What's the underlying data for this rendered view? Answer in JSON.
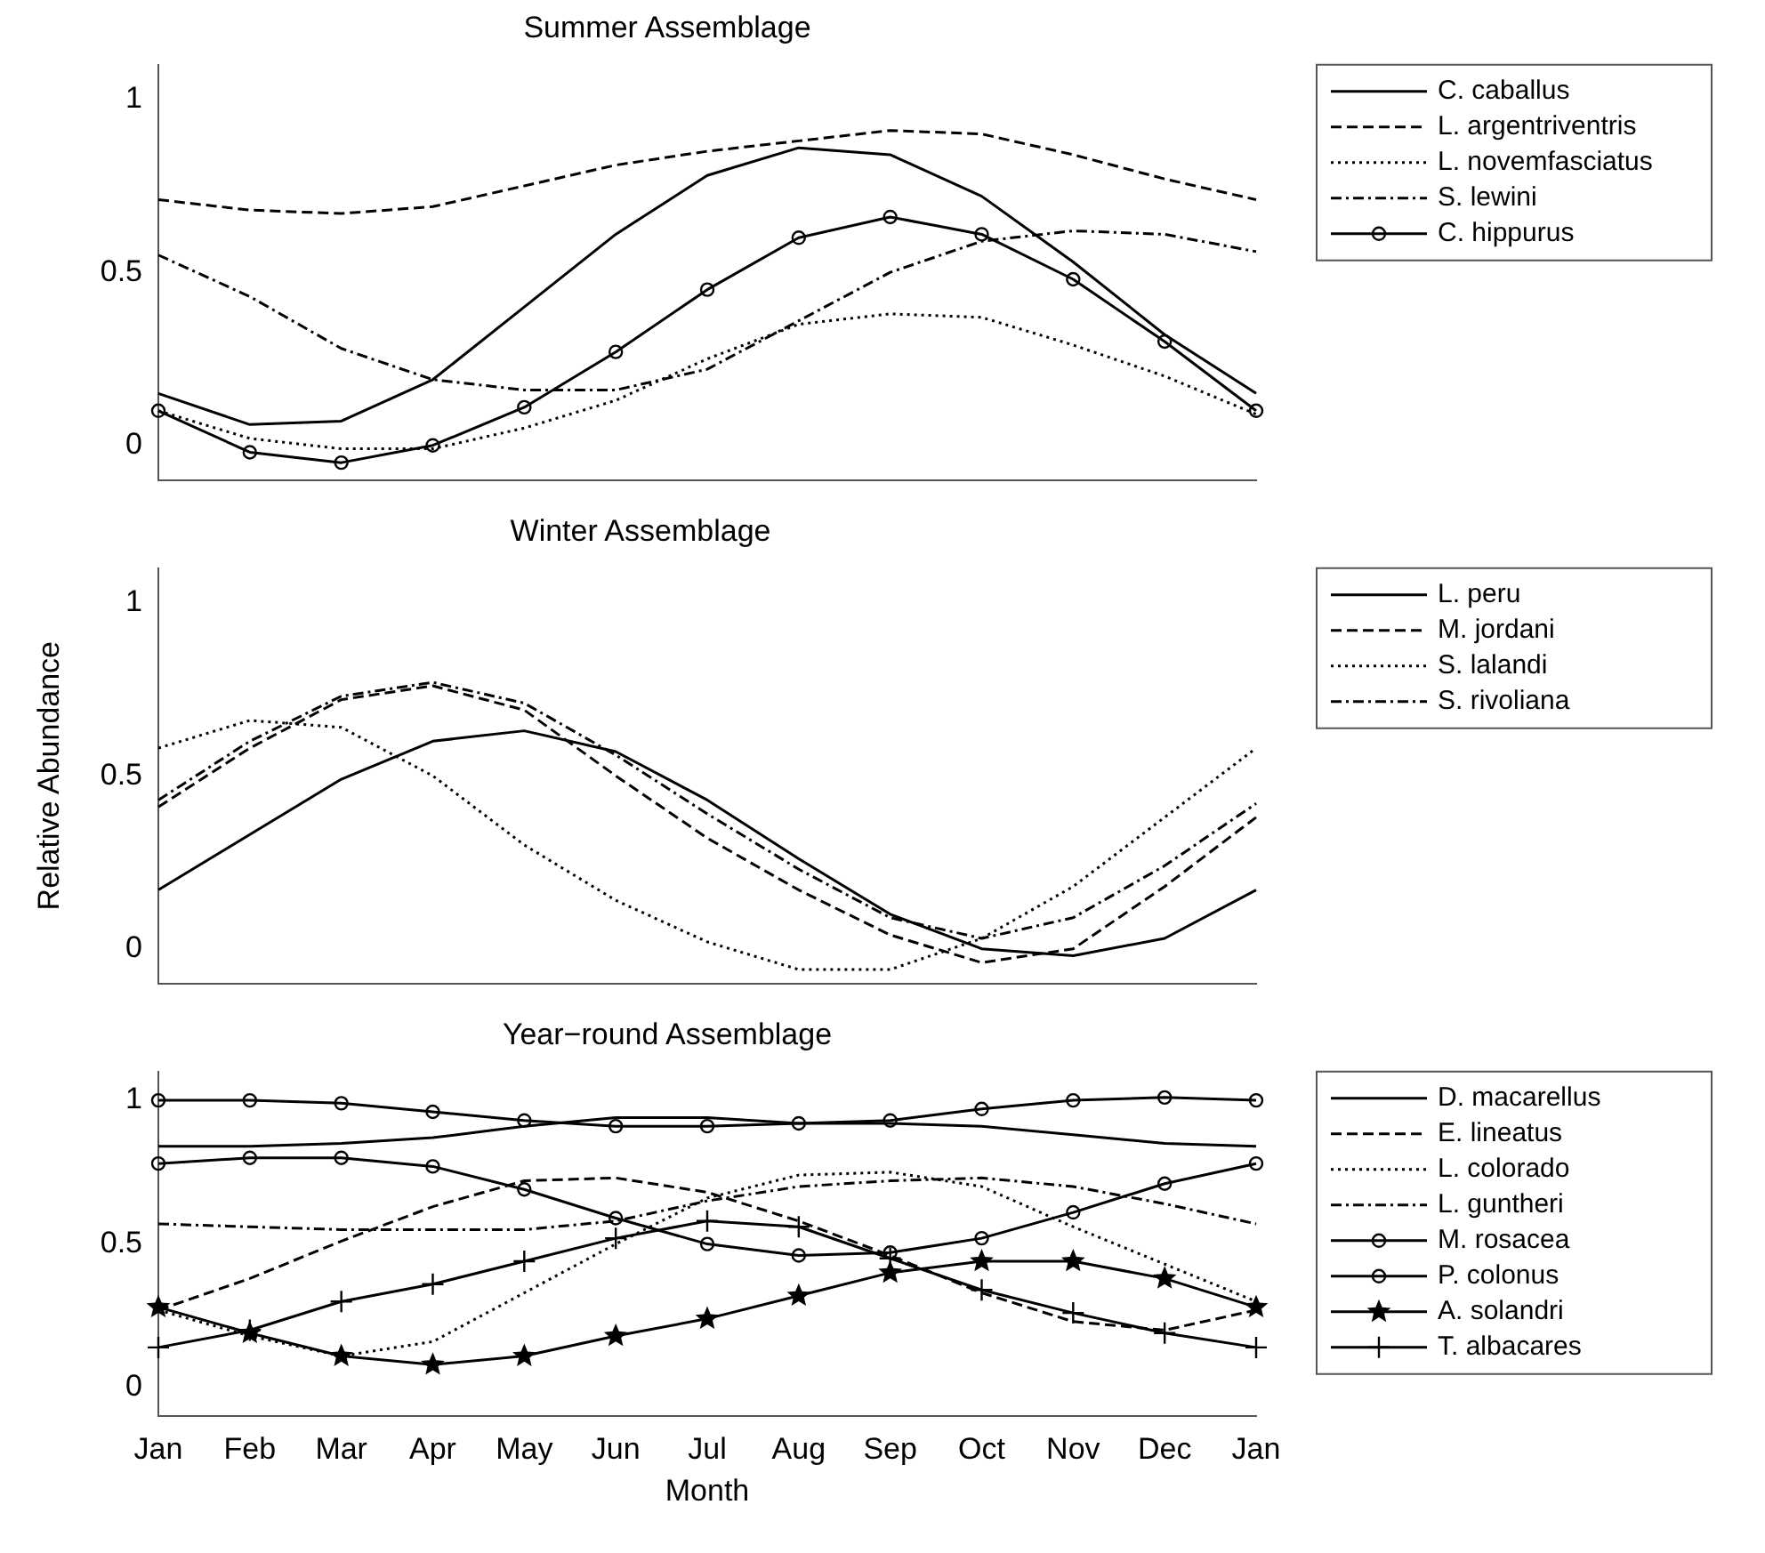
{
  "chart_data": [
    {
      "type": "line",
      "title": "Summer Assemblage",
      "categories": [
        null,
        null,
        null,
        null,
        null,
        null,
        null,
        null,
        null,
        null,
        null,
        null,
        null
      ],
      "ylim": [
        -0.1,
        1.1
      ],
      "yticks": [
        0,
        0.5,
        1
      ],
      "tick_labels": "y",
      "legend": "right",
      "grid": false,
      "series": [
        {
          "name": "C. caballus",
          "color": "#000000",
          "line_style": "solid",
          "values": [
            0.15,
            0.06,
            0.07,
            0.19,
            0.4,
            0.61,
            0.78,
            0.86,
            0.84,
            0.72,
            0.53,
            0.32,
            0.15
          ]
        },
        {
          "name": "L. argentriventris",
          "color": "#000000",
          "line_style": "dashed",
          "values": [
            0.71,
            0.68,
            0.67,
            0.69,
            0.75,
            0.81,
            0.85,
            0.88,
            0.91,
            0.9,
            0.84,
            0.77,
            0.71
          ]
        },
        {
          "name": "L. novemfasciatus",
          "color": "#000000",
          "line_style": "dotted",
          "values": [
            0.1,
            0.02,
            -0.01,
            -0.01,
            0.05,
            0.13,
            0.25,
            0.35,
            0.38,
            0.37,
            0.29,
            0.2,
            0.09
          ]
        },
        {
          "name": "S. lewini",
          "color": "#000000",
          "line_style": "dashdot",
          "values": [
            0.55,
            0.43,
            0.28,
            0.19,
            0.16,
            0.16,
            0.22,
            0.36,
            0.5,
            0.59,
            0.62,
            0.61,
            0.56
          ]
        },
        {
          "name": "C. hippurus",
          "color": "#000000",
          "line_style": "solid",
          "marker": "circle",
          "values": [
            0.1,
            -0.02,
            -0.05,
            0.0,
            0.11,
            0.27,
            0.45,
            0.6,
            0.66,
            0.61,
            0.48,
            0.3,
            0.1
          ]
        }
      ]
    },
    {
      "type": "line",
      "title": "Winter Assemblage",
      "ylabel": "Relative Abundance",
      "categories": [
        null,
        null,
        null,
        null,
        null,
        null,
        null,
        null,
        null,
        null,
        null,
        null,
        null
      ],
      "ylim": [
        -0.1,
        1.1
      ],
      "yticks": [
        0,
        0.5,
        1
      ],
      "tick_labels": "y",
      "legend": "right",
      "grid": false,
      "series": [
        {
          "name": "L. peru",
          "color": "#000000",
          "line_style": "solid",
          "values": [
            0.17,
            0.33,
            0.49,
            0.6,
            0.63,
            0.57,
            0.43,
            0.26,
            0.1,
            0.0,
            -0.02,
            0.03,
            0.17
          ]
        },
        {
          "name": "M. jordani",
          "color": "#000000",
          "line_style": "dashed",
          "values": [
            0.41,
            0.58,
            0.72,
            0.76,
            0.69,
            0.5,
            0.32,
            0.17,
            0.04,
            -0.04,
            0.0,
            0.18,
            0.38
          ]
        },
        {
          "name": "S. lalandi",
          "color": "#000000",
          "line_style": "dotted",
          "values": [
            0.58,
            0.66,
            0.64,
            0.5,
            0.3,
            0.14,
            0.02,
            -0.06,
            -0.06,
            0.03,
            0.18,
            0.38,
            0.58
          ]
        },
        {
          "name": "S. rivoliana",
          "color": "#000000",
          "line_style": "dashdot",
          "values": [
            0.43,
            0.6,
            0.73,
            0.77,
            0.71,
            0.56,
            0.39,
            0.23,
            0.09,
            0.03,
            0.09,
            0.24,
            0.42
          ]
        }
      ]
    },
    {
      "type": "line",
      "title": "Year−round Assemblage",
      "xlabel": "Month",
      "categories": [
        "Jan",
        "Feb",
        "Mar",
        "Apr",
        "May",
        "Jun",
        "Jul",
        "Aug",
        "Sep",
        "Oct",
        "Nov",
        "Dec",
        "Jan"
      ],
      "ylim": [
        -0.1,
        1.1
      ],
      "yticks": [
        0,
        0.5,
        1
      ],
      "legend": "right",
      "grid": false,
      "series": [
        {
          "name": "D. macarellus",
          "color": "#000000",
          "line_style": "solid",
          "values": [
            0.84,
            0.84,
            0.85,
            0.87,
            0.91,
            0.94,
            0.94,
            0.92,
            0.92,
            0.91,
            0.88,
            0.85,
            0.84
          ]
        },
        {
          "name": "E. lineatus",
          "color": "#000000",
          "line_style": "dashed",
          "values": [
            0.27,
            0.38,
            0.51,
            0.63,
            0.72,
            0.73,
            0.68,
            0.58,
            0.46,
            0.33,
            0.23,
            0.2,
            0.27
          ]
        },
        {
          "name": "L. colorado",
          "color": "#000000",
          "line_style": "dotted",
          "values": [
            0.27,
            0.18,
            0.11,
            0.16,
            0.33,
            0.5,
            0.66,
            0.74,
            0.75,
            0.7,
            0.56,
            0.43,
            0.3
          ]
        },
        {
          "name": "L. guntheri",
          "color": "#000000",
          "line_style": "dashdot",
          "values": [
            0.57,
            0.56,
            0.55,
            0.55,
            0.55,
            0.58,
            0.65,
            0.7,
            0.72,
            0.73,
            0.7,
            0.64,
            0.57
          ]
        },
        {
          "name": "M. rosacea",
          "color": "#000000",
          "line_style": "solid",
          "marker": "circle",
          "values": [
            0.78,
            0.8,
            0.8,
            0.77,
            0.69,
            0.59,
            0.5,
            0.46,
            0.47,
            0.52,
            0.61,
            0.71,
            0.78
          ]
        },
        {
          "name": "P. colonus",
          "color": "#000000",
          "line_style": "solid",
          "marker": "circle",
          "values": [
            1.0,
            1.0,
            0.99,
            0.96,
            0.93,
            0.91,
            0.91,
            0.92,
            0.93,
            0.97,
            1.0,
            1.01,
            1.0
          ]
        },
        {
          "name": "A. solandri",
          "color": "#000000",
          "line_style": "solid",
          "marker": "star",
          "values": [
            0.28,
            0.19,
            0.11,
            0.08,
            0.11,
            0.18,
            0.24,
            0.32,
            0.4,
            0.44,
            0.44,
            0.38,
            0.28
          ]
        },
        {
          "name": "T. albacares",
          "color": "#000000",
          "line_style": "solid",
          "marker": "cross",
          "values": [
            0.14,
            0.2,
            0.3,
            0.36,
            0.44,
            0.52,
            0.58,
            0.56,
            0.45,
            0.34,
            0.26,
            0.19,
            0.14
          ]
        }
      ]
    }
  ]
}
